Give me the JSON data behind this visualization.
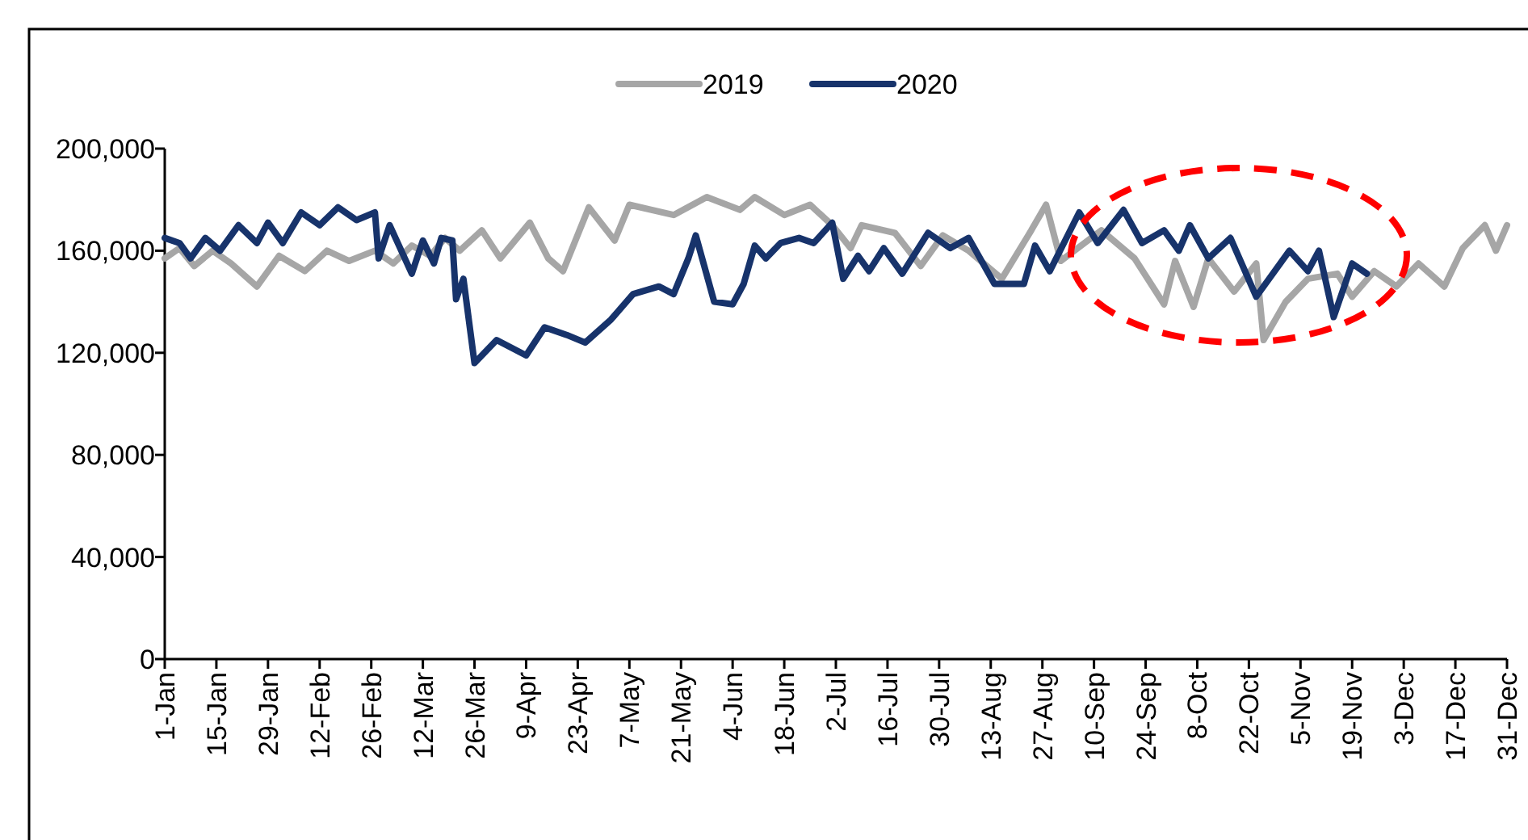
{
  "chart_data": {
    "type": "line",
    "legend": "top",
    "grid": false,
    "line_style": "solid",
    "ylim": [
      0,
      200000
    ],
    "yticks": [
      {
        "value": 0,
        "label": "0"
      },
      {
        "value": 40000,
        "label": "40,000"
      },
      {
        "value": 80000,
        "label": "80,000"
      },
      {
        "value": 120000,
        "label": "120,000"
      },
      {
        "value": 160000,
        "label": "160,000"
      },
      {
        "value": 200000,
        "label": "200,000"
      }
    ],
    "xlim": [
      "--01-01",
      "--12-31"
    ],
    "xticks": [
      {
        "value": "--01-01",
        "label": "1-Jan"
      },
      {
        "value": "--01-15",
        "label": "15-Jan"
      },
      {
        "value": "--01-29",
        "label": "29-Jan"
      },
      {
        "value": "--02-12",
        "label": "12-Feb"
      },
      {
        "value": "--02-26",
        "label": "26-Feb"
      },
      {
        "value": "--03-12",
        "label": "12-Mar"
      },
      {
        "value": "--03-26",
        "label": "26-Mar"
      },
      {
        "value": "--04-09",
        "label": "9-Apr"
      },
      {
        "value": "--04-23",
        "label": "23-Apr"
      },
      {
        "value": "--05-07",
        "label": "7-May"
      },
      {
        "value": "--05-21",
        "label": "21-May"
      },
      {
        "value": "--06-04",
        "label": "4-Jun"
      },
      {
        "value": "--06-18",
        "label": "18-Jun"
      },
      {
        "value": "--07-02",
        "label": "2-Jul"
      },
      {
        "value": "--07-16",
        "label": "16-Jul"
      },
      {
        "value": "--07-30",
        "label": "30-Jul"
      },
      {
        "value": "--08-13",
        "label": "13-Aug"
      },
      {
        "value": "--08-27",
        "label": "27-Aug"
      },
      {
        "value": "--09-10",
        "label": "10-Sep"
      },
      {
        "value": "--09-24",
        "label": "24-Sep"
      },
      {
        "value": "--10-08",
        "label": "8-Oct"
      },
      {
        "value": "--10-22",
        "label": "22-Oct"
      },
      {
        "value": "--11-05",
        "label": "5-Nov"
      },
      {
        "value": "--11-19",
        "label": "19-Nov"
      },
      {
        "value": "--12-03",
        "label": "3-Dec"
      },
      {
        "value": "--12-17",
        "label": "17-Dec"
      },
      {
        "value": "--12-31",
        "label": "31-Dec"
      }
    ],
    "series": [
      {
        "name": "2019",
        "color": "#a6a6a6",
        "x": [
          "--01-01",
          "--01-05",
          "--01-09",
          "--01-14",
          "--01-19",
          "--01-26",
          "--02-01",
          "--02-08",
          "--02-14",
          "--02-20",
          "--02-27",
          "--03-04",
          "--03-09",
          "--03-14",
          "--03-18",
          "--03-22",
          "--03-28",
          "--04-02",
          "--04-10",
          "--04-15",
          "--04-19",
          "--04-26",
          "--05-03",
          "--05-07",
          "--05-19",
          "--05-28",
          "--06-06",
          "--06-10",
          "--06-18",
          "--06-25",
          "--07-01",
          "--07-06",
          "--07-09",
          "--07-18",
          "--07-25",
          "--07-31",
          "--08-07",
          "--08-16",
          "--08-24",
          "--08-28",
          "--09-01",
          "--09-12",
          "--09-21",
          "--09-29",
          "--10-02",
          "--10-07",
          "--10-11",
          "--10-18",
          "--10-24",
          "--10-26",
          "--11-01",
          "--11-07",
          "--11-15",
          "--11-19",
          "--11-25",
          "--12-01",
          "--12-07",
          "--12-14",
          "--12-19",
          "--12-25",
          "--12-28",
          "--12-31"
        ],
        "values": [
          157000,
          161000,
          154000,
          160000,
          155000,
          146000,
          158000,
          152000,
          160000,
          156000,
          160000,
          155000,
          162000,
          158000,
          165000,
          160000,
          168000,
          157000,
          171000,
          157000,
          152000,
          177000,
          164000,
          178000,
          174000,
          181000,
          176000,
          181000,
          174000,
          178000,
          170000,
          161000,
          170000,
          167000,
          154000,
          166000,
          160000,
          149000,
          168000,
          178000,
          156000,
          168000,
          157000,
          139000,
          156000,
          138000,
          157000,
          144000,
          155000,
          125000,
          140000,
          149000,
          151000,
          142000,
          152000,
          146000,
          155000,
          146000,
          161000,
          170000,
          160000,
          170000
        ]
      },
      {
        "name": "2020",
        "color": "#17336b",
        "x": [
          "--01-01",
          "--01-05",
          "--01-08",
          "--01-12",
          "--01-16",
          "--01-21",
          "--01-26",
          "--01-29",
          "--02-02",
          "--02-07",
          "--02-12",
          "--02-17",
          "--02-22",
          "--02-27",
          "--02-28",
          "--03-03",
          "--03-09",
          "--03-12",
          "--03-15",
          "--03-17",
          "--03-20",
          "--03-21",
          "--03-23",
          "--03-26",
          "--04-01",
          "--04-09",
          "--04-14",
          "--04-20",
          "--04-25",
          "--05-02",
          "--05-08",
          "--05-15",
          "--05-19",
          "--05-23",
          "--05-25",
          "--05-30",
          "--06-04",
          "--06-07",
          "--06-10",
          "--06-13",
          "--06-17",
          "--06-22",
          "--06-26",
          "--07-01",
          "--07-04",
          "--07-08",
          "--07-11",
          "--07-15",
          "--07-20",
          "--07-27",
          "--08-02",
          "--08-07",
          "--08-14",
          "--08-22",
          "--08-25",
          "--08-29",
          "--09-06",
          "--09-11",
          "--09-18",
          "--09-23",
          "--09-29",
          "--10-03",
          "--10-06",
          "--10-11",
          "--10-17",
          "--10-24",
          "--11-02",
          "--11-07",
          "--11-10",
          "--11-14",
          "--11-19",
          "--11-23"
        ],
        "values": [
          165000,
          163000,
          157000,
          165000,
          160000,
          170000,
          163000,
          171000,
          163000,
          175000,
          170000,
          177000,
          172000,
          175000,
          157000,
          170000,
          151000,
          164000,
          155000,
          165000,
          164000,
          141000,
          149000,
          116000,
          125000,
          119000,
          130000,
          127000,
          124000,
          133000,
          143000,
          146000,
          143000,
          157000,
          166000,
          140000,
          139000,
          147000,
          162000,
          157000,
          163000,
          165000,
          163000,
          171000,
          149000,
          158000,
          152000,
          161000,
          151000,
          167000,
          161000,
          165000,
          147000,
          147000,
          162000,
          152000,
          175000,
          163000,
          176000,
          163000,
          168000,
          160000,
          170000,
          157000,
          165000,
          142000,
          160000,
          152000,
          160000,
          134000,
          155000,
          151000
        ]
      }
    ]
  }
}
